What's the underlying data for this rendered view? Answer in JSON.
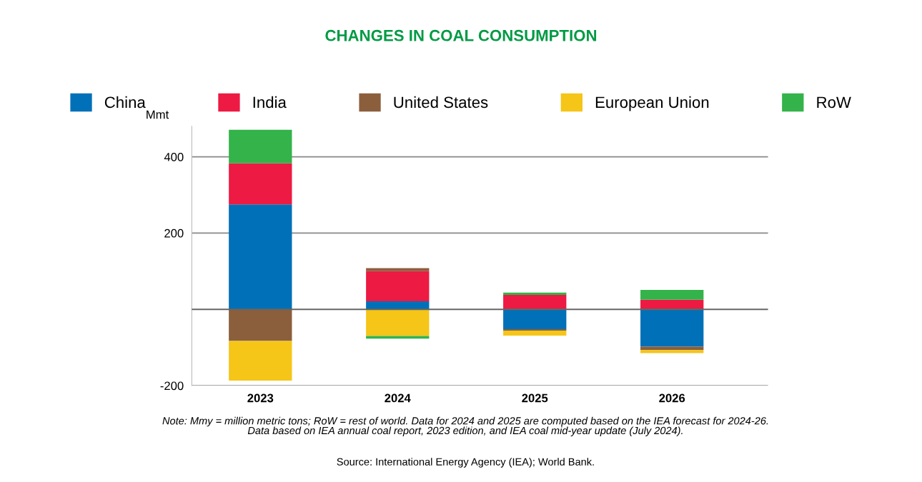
{
  "chart_data": {
    "type": "bar",
    "stacked": true,
    "title": "CHANGES IN COAL CONSUMPTION",
    "ylabel": "Mmt",
    "categories": [
      "2023",
      "2024",
      "2025",
      "2026"
    ],
    "series": [
      {
        "name": "China",
        "color": "#0070b8",
        "values": [
          275,
          21,
          -52,
          -98
        ]
      },
      {
        "name": "India",
        "color": "#ed1a43",
        "values": [
          108,
          79,
          38,
          25
        ]
      },
      {
        "name": "United States",
        "color": "#8b5e3c",
        "values": [
          -83,
          8,
          -4,
          -9
        ]
      },
      {
        "name": "European Union",
        "color": "#f5c518",
        "values": [
          -104,
          -70,
          -13,
          -8
        ]
      },
      {
        "name": "RoW",
        "color": "#33b34a",
        "values": [
          88,
          -7,
          6,
          26
        ]
      }
    ],
    "ylim": [
      -200,
      480
    ],
    "yticks": [
      -200,
      200,
      400
    ],
    "grid": "y",
    "legend": "top",
    "annotations": [
      "Note: Mmy = million metric tons; RoW = rest of world. Data for 2024 and 2025 are computed based on the IEA forecast for 2024-26.\nData based on IEA annual coal report, 2023 edition, and IEA coal mid-year update (July 2024).",
      "Source: International Energy Agency (IEA); World Bank."
    ]
  }
}
